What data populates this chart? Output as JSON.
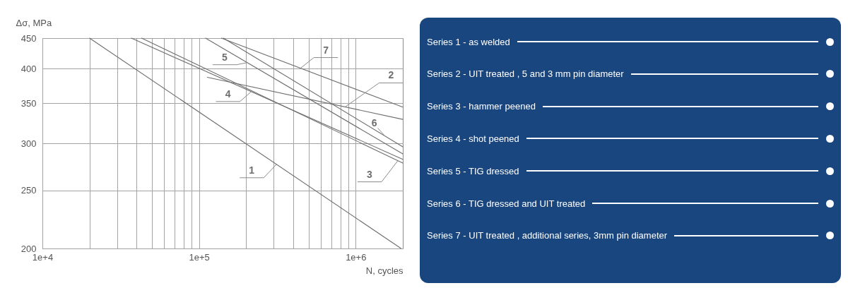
{
  "chart_data": [
    {
      "type": "line",
      "xlabel": "N, cycles",
      "ylabel": "Δσ, MPa",
      "log": "xy",
      "xlim": [
        10000,
        2000000
      ],
      "ylim": [
        200,
        450
      ],
      "xticks": [
        {
          "value": 10000,
          "label": "1e+4"
        },
        {
          "value": 20000,
          "label": null
        },
        {
          "value": 30000,
          "label": null
        },
        {
          "value": 40000,
          "label": null
        },
        {
          "value": 50000,
          "label": null
        },
        {
          "value": 60000,
          "label": null
        },
        {
          "value": 70000,
          "label": null
        },
        {
          "value": 80000,
          "label": null
        },
        {
          "value": 90000,
          "label": null
        },
        {
          "value": 100000,
          "label": "1e+5"
        },
        {
          "value": 200000,
          "label": null
        },
        {
          "value": 300000,
          "label": null
        },
        {
          "value": 400000,
          "label": null
        },
        {
          "value": 500000,
          "label": null
        },
        {
          "value": 600000,
          "label": null
        },
        {
          "value": 700000,
          "label": null
        },
        {
          "value": 800000,
          "label": null
        },
        {
          "value": 900000,
          "label": null
        },
        {
          "value": 1000000,
          "label": "1e+6"
        }
      ],
      "yticks": [
        200,
        250,
        300,
        350,
        400,
        450
      ],
      "grid": true,
      "line_style": "solid",
      "series": [
        {
          "name": "1",
          "color": "#6e6e6e",
          "x": [
            20000,
            1950000
          ],
          "values": [
            450,
            200
          ]
        },
        {
          "name": "2",
          "color": "#6e6e6e",
          "x": [
            113000,
            2000000
          ],
          "values": [
            387,
            329
          ]
        },
        {
          "name": "3",
          "color": "#6e6e6e",
          "x": [
            43000,
            2000000
          ],
          "values": [
            450,
            278
          ]
        },
        {
          "name": "4",
          "color": "#6e6e6e",
          "x": [
            37000,
            2000000
          ],
          "values": [
            450,
            282
          ]
        },
        {
          "name": "5",
          "color": "#6e6e6e",
          "x": [
            110000,
            2000000
          ],
          "values": [
            450,
            288
          ]
        },
        {
          "name": "6",
          "color": "#6e6e6e",
          "x": [
            143000,
            2000000
          ],
          "values": [
            450,
            296
          ]
        },
        {
          "name": "7",
          "color": "#6e6e6e",
          "x": [
            139000,
            2000000
          ],
          "values": [
            450,
            345
          ]
        }
      ]
    },
    {
      "type": "other",
      "annotations": [
        "Series 1 - as welded",
        "Series 2 - UIT treated , 5 and 3 mm pin diameter",
        "Series 3 - hammer peened",
        "Series 4 - shot peened",
        "Series 5 - TIG dressed",
        "Series 6 - TIG dressed and UIT treated",
        "Series 7 - UIT treated , additional series, 3mm pin diameter"
      ]
    }
  ]
}
